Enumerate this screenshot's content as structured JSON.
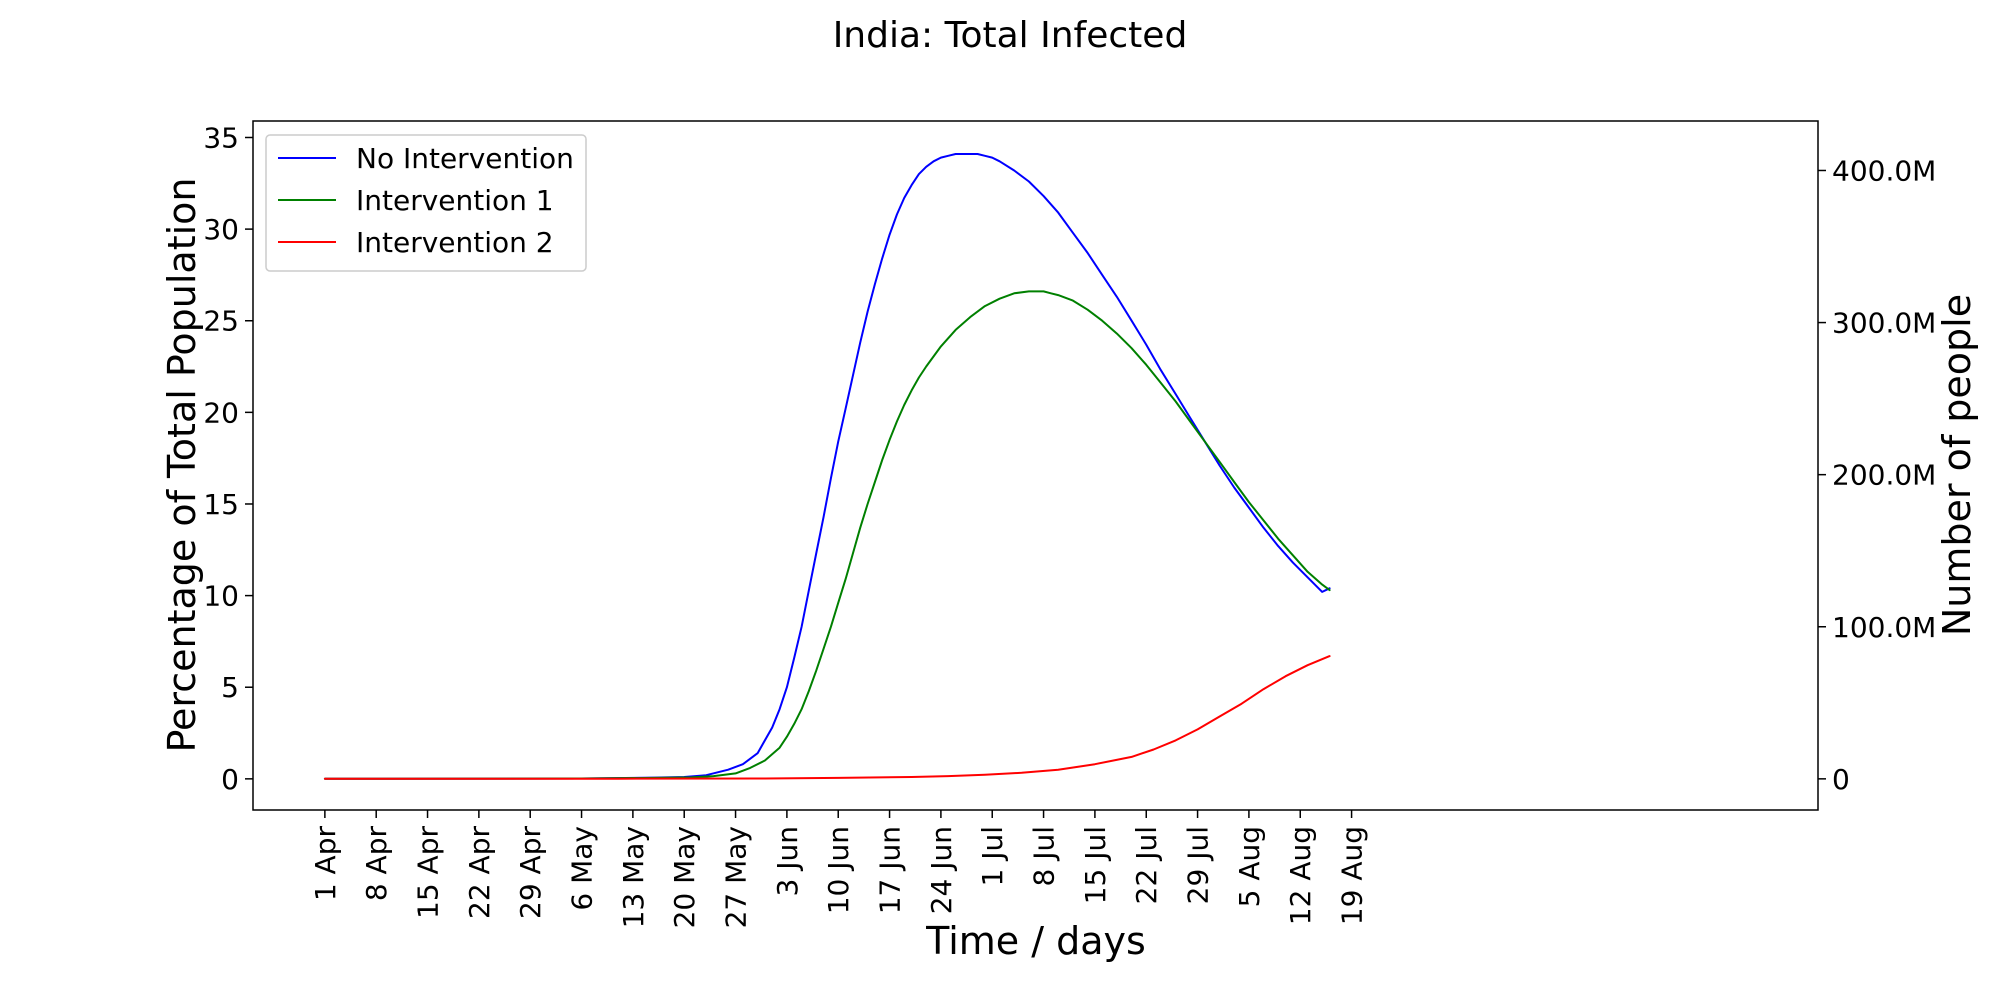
{
  "chart_data": {
    "type": "line",
    "title": "India: Total Infected",
    "xlabel": "Time / days",
    "ylabel": "Percentage of Total Population",
    "ylabel_right": "Number of people",
    "x_unit": "days since 1 Apr",
    "xlim": [
      -9.8,
      203.6
    ],
    "ylim": [
      -1.7,
      35.9
    ],
    "x_ticks": [
      {
        "day": 0,
        "label": "1 Apr"
      },
      {
        "day": 7,
        "label": "8 Apr"
      },
      {
        "day": 14,
        "label": "15 Apr"
      },
      {
        "day": 21,
        "label": "22 Apr"
      },
      {
        "day": 28,
        "label": "29 Apr"
      },
      {
        "day": 35,
        "label": "6 May"
      },
      {
        "day": 42,
        "label": "13 May"
      },
      {
        "day": 49,
        "label": "20 May"
      },
      {
        "day": 56,
        "label": "27 May"
      },
      {
        "day": 63,
        "label": "3 Jun"
      },
      {
        "day": 70,
        "label": "10 Jun"
      },
      {
        "day": 77,
        "label": "17 Jun"
      },
      {
        "day": 84,
        "label": "24 Jun"
      },
      {
        "day": 91,
        "label": "1 Jul"
      },
      {
        "day": 98,
        "label": "8 Jul"
      },
      {
        "day": 105,
        "label": "15 Jul"
      },
      {
        "day": 112,
        "label": "22 Jul"
      },
      {
        "day": 119,
        "label": "29 Jul"
      },
      {
        "day": 126,
        "label": "5 Aug"
      },
      {
        "day": 133,
        "label": "12 Aug"
      },
      {
        "day": 140,
        "label": "19 Aug"
      }
    ],
    "y_ticks": [
      {
        "value": 0,
        "label": "0"
      },
      {
        "value": 5,
        "label": "5"
      },
      {
        "value": 10,
        "label": "10"
      },
      {
        "value": 15,
        "label": "15"
      },
      {
        "value": 20,
        "label": "20"
      },
      {
        "value": 25,
        "label": "25"
      },
      {
        "value": 30,
        "label": "30"
      },
      {
        "value": 35,
        "label": "35"
      }
    ],
    "y_right_ticks": [
      {
        "value": 0,
        "label": "0"
      },
      {
        "value": 8.3,
        "label": "100.0M"
      },
      {
        "value": 16.6,
        "label": "200.0M"
      },
      {
        "value": 24.9,
        "label": "300.0M"
      },
      {
        "value": 33.2,
        "label": "400.0M"
      }
    ],
    "legend_position": "upper-left",
    "grid": false,
    "series": [
      {
        "name": "No Intervention",
        "color": "#0000ff",
        "x": [
          0,
          35,
          45,
          49,
          52,
          55,
          57,
          59,
          61,
          62,
          63,
          64,
          65,
          66,
          67,
          68,
          69,
          70,
          71,
          72,
          73,
          74,
          75,
          76,
          77,
          78,
          79,
          80,
          81,
          82,
          83,
          84,
          85,
          86,
          87,
          88,
          89,
          90,
          91,
          92,
          94,
          96,
          98,
          100,
          102,
          104,
          106,
          108,
          110,
          112,
          114,
          116,
          118,
          120,
          122,
          124,
          126,
          128,
          130,
          132,
          134,
          136,
          137
        ],
        "y": [
          0,
          0.02,
          0.07,
          0.1,
          0.2,
          0.5,
          0.8,
          1.4,
          2.8,
          3.8,
          5.0,
          6.6,
          8.3,
          10.3,
          12.3,
          14.3,
          16.4,
          18.4,
          20.2,
          22.0,
          23.8,
          25.5,
          27.0,
          28.4,
          29.7,
          30.8,
          31.7,
          32.4,
          33.0,
          33.4,
          33.7,
          33.9,
          34.0,
          34.1,
          34.1,
          34.1,
          34.1,
          34.0,
          33.9,
          33.7,
          33.2,
          32.6,
          31.8,
          30.9,
          29.8,
          28.7,
          27.5,
          26.3,
          25.0,
          23.7,
          22.3,
          21.0,
          19.7,
          18.4,
          17.1,
          15.9,
          14.8,
          13.7,
          12.7,
          11.8,
          11.0,
          10.2,
          10.4
        ]
      },
      {
        "name": "Intervention 1",
        "color": "#008000",
        "x": [
          0,
          35,
          45,
          50,
          53,
          56,
          58,
          60,
          62,
          63,
          64,
          65,
          66,
          67,
          68,
          69,
          70,
          71,
          72,
          73,
          74,
          75,
          76,
          77,
          78,
          79,
          80,
          81,
          82,
          84,
          86,
          88,
          90,
          92,
          94,
          96,
          97,
          98,
          99,
          100,
          102,
          104,
          106,
          108,
          110,
          112,
          114,
          116,
          118,
          120,
          122,
          124,
          126,
          128,
          130,
          132,
          134,
          136,
          137
        ],
        "y": [
          0,
          0.02,
          0.05,
          0.08,
          0.15,
          0.3,
          0.6,
          1.0,
          1.7,
          2.3,
          3.0,
          3.8,
          4.8,
          5.9,
          7.1,
          8.3,
          9.6,
          10.9,
          12.3,
          13.7,
          15.0,
          16.2,
          17.4,
          18.5,
          19.5,
          20.4,
          21.2,
          21.9,
          22.5,
          23.6,
          24.5,
          25.2,
          25.8,
          26.2,
          26.5,
          26.6,
          26.6,
          26.6,
          26.5,
          26.4,
          26.1,
          25.6,
          25.0,
          24.3,
          23.5,
          22.6,
          21.6,
          20.6,
          19.5,
          18.4,
          17.3,
          16.2,
          15.1,
          14.1,
          13.1,
          12.2,
          11.3,
          10.6,
          10.3
        ]
      },
      {
        "name": "Intervention 2",
        "color": "#ff0000",
        "x": [
          0,
          40,
          60,
          70,
          80,
          85,
          90,
          95,
          100,
          105,
          110,
          113,
          116,
          119,
          122,
          125,
          128,
          131,
          134,
          137
        ],
        "y": [
          0,
          0.01,
          0.02,
          0.05,
          0.1,
          0.15,
          0.22,
          0.33,
          0.5,
          0.8,
          1.2,
          1.6,
          2.1,
          2.7,
          3.4,
          4.1,
          4.9,
          5.6,
          6.2,
          6.7
        ]
      }
    ]
  }
}
